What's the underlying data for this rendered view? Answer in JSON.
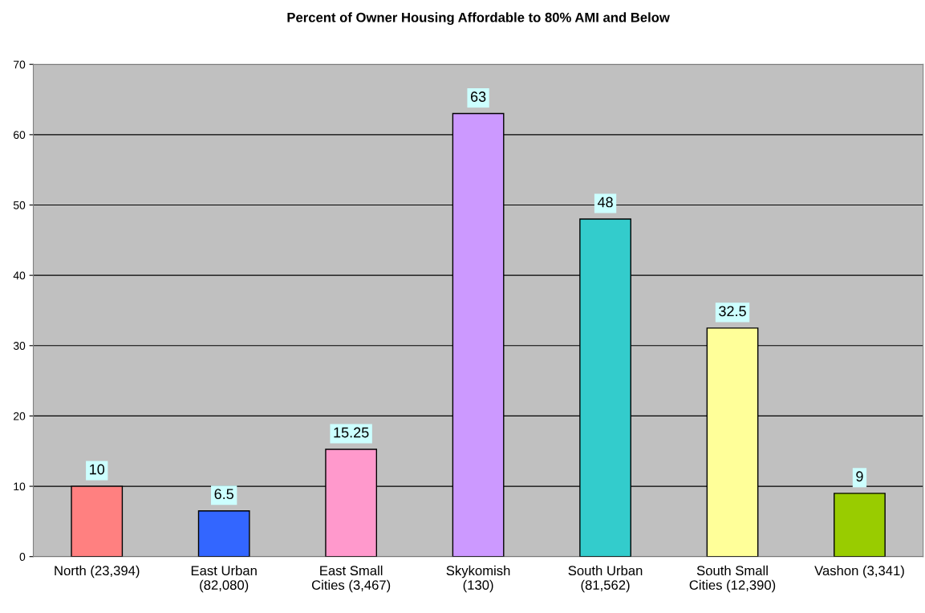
{
  "chart_data": {
    "type": "bar",
    "title": "Percent of Owner Housing Affordable to 80% AMI and Below",
    "categories": [
      "North (23,394)",
      "East Urban\n(82,080)",
      "East Small\nCities (3,467)",
      "Skykomish\n(130)",
      "South Urban\n(81,562)",
      "South Small\nCities (12,390)",
      "Vashon (3,341)"
    ],
    "values": [
      10,
      6.5,
      15.25,
      63,
      48,
      32.5,
      9
    ],
    "colors": [
      "#ff8080",
      "#3366ff",
      "#ff99cc",
      "#cc99ff",
      "#33cccc",
      "#ffff99",
      "#99cc00"
    ],
    "ylim": [
      0,
      70
    ],
    "yticks": [
      0,
      10,
      20,
      30,
      40,
      50,
      60,
      70
    ],
    "grid": "y",
    "data_labels": true,
    "legend": false
  }
}
